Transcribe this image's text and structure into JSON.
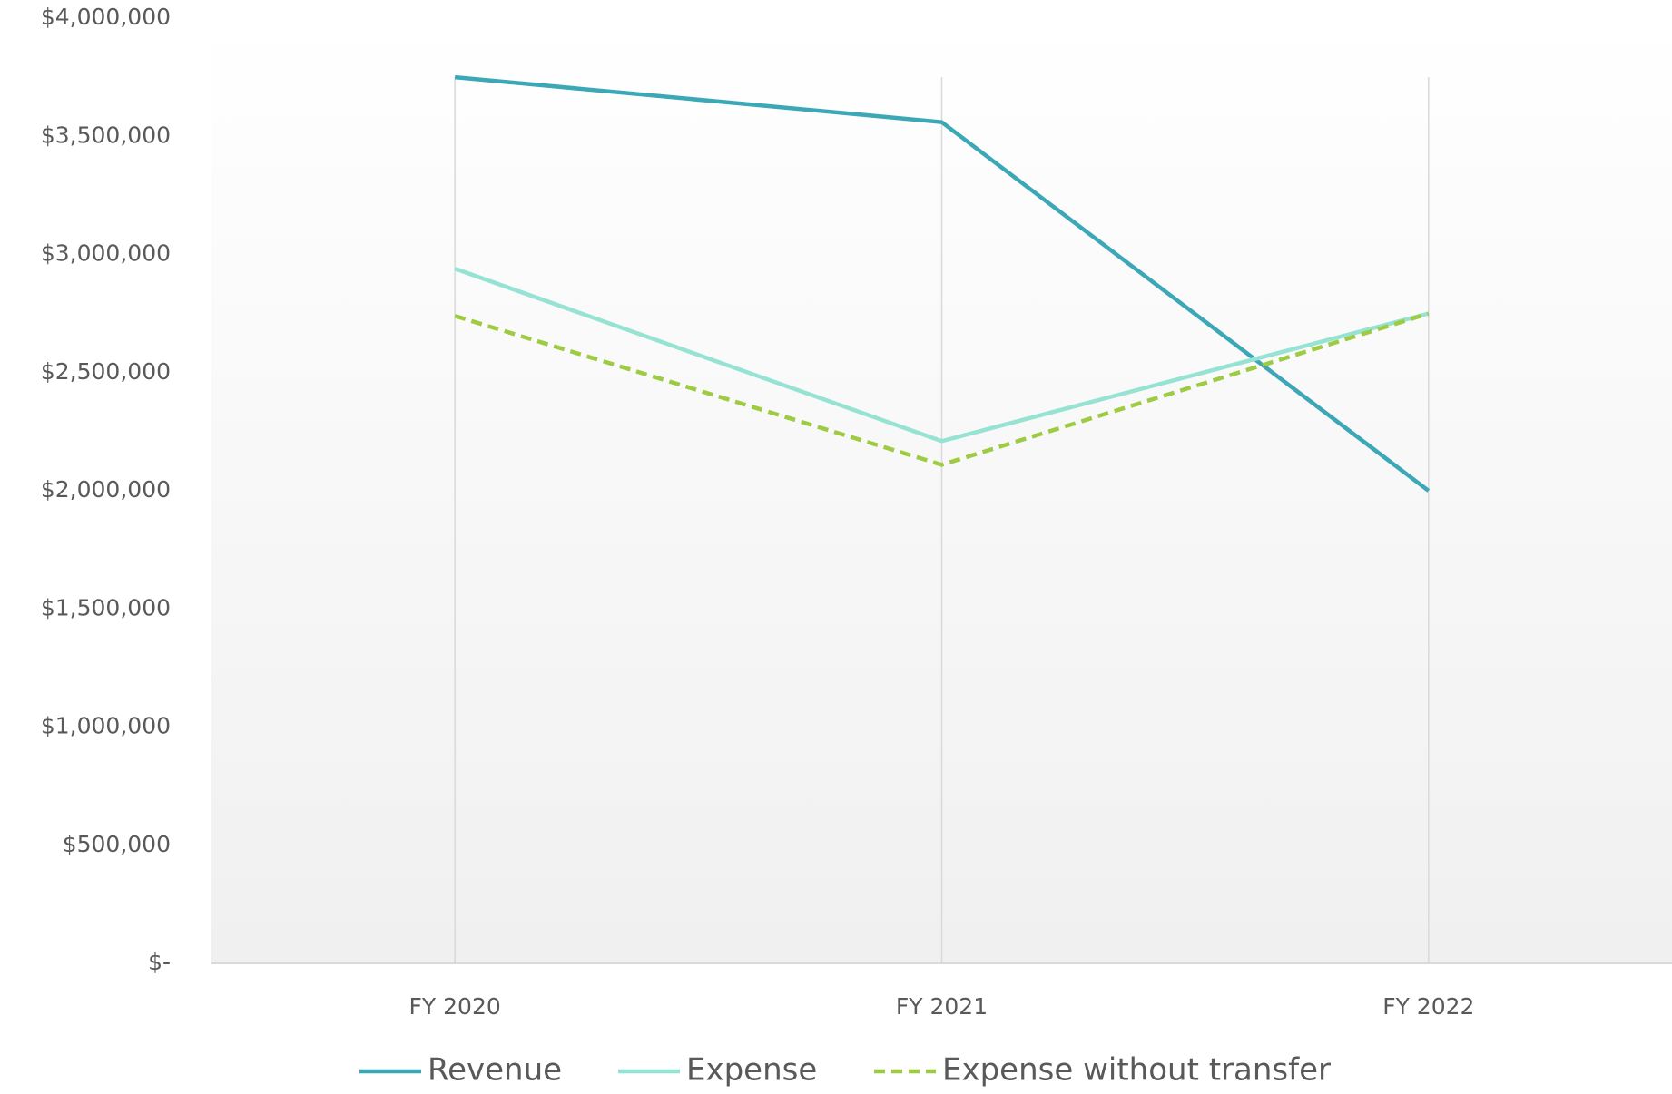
{
  "chart_data": {
    "type": "line",
    "categories": [
      "FY 2020",
      "FY 2021",
      "FY 2022"
    ],
    "series": [
      {
        "name": "Revenue",
        "color": "#3ba7b7",
        "dash": false,
        "values": [
          3750000,
          3560000,
          2000000
        ]
      },
      {
        "name": "Expense",
        "color": "#96e3d3",
        "dash": false,
        "values": [
          2940000,
          2210000,
          2750000
        ]
      },
      {
        "name": "Expense without transfer",
        "color": "#9dcb41",
        "dash": true,
        "values": [
          2740000,
          2110000,
          2750000
        ]
      }
    ],
    "ylim": [
      0,
      4000000
    ],
    "yticks": [
      {
        "value": 0,
        "label": "$-"
      },
      {
        "value": 500000,
        "label": "$500,000"
      },
      {
        "value": 1000000,
        "label": "$1,000,000"
      },
      {
        "value": 1500000,
        "label": "$1,500,000"
      },
      {
        "value": 2000000,
        "label": "$2,000,000"
      },
      {
        "value": 2500000,
        "label": "$2,500,000"
      },
      {
        "value": 3000000,
        "label": "$3,000,000"
      },
      {
        "value": 3500000,
        "label": "$3,500,000"
      },
      {
        "value": 4000000,
        "label": "$4,000,000"
      }
    ],
    "legend": "bottom"
  }
}
